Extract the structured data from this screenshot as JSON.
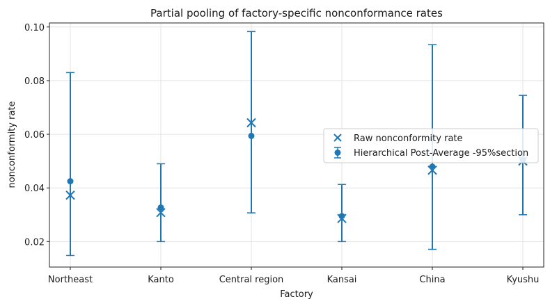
{
  "chart_data": {
    "type": "scatter",
    "title": "Partial pooling of factory-specific nonconformance rates",
    "xlabel": "Factory",
    "ylabel": "nonconformity rate",
    "categories": [
      "Northeast",
      "Kanto",
      "Central region",
      "Kansai",
      "China",
      "Kyushu"
    ],
    "ylim": [
      0.0105,
      0.1015
    ],
    "yticks": [
      0.02,
      0.04,
      0.06,
      0.08,
      0.1
    ],
    "ytick_labels": [
      "0.02",
      "0.04",
      "0.06",
      "0.08",
      "0.10"
    ],
    "grid": true,
    "legend_position": "right",
    "series": [
      {
        "name": "Raw nonconformity rate",
        "marker": "x",
        "values": [
          0.0373,
          0.0308,
          0.0643,
          0.0286,
          0.0466,
          0.05
        ]
      },
      {
        "name": "Hierarchical Post-Average -95%section",
        "marker": "o",
        "values": [
          0.0425,
          0.0327,
          0.0594,
          0.0295,
          0.0479,
          0.0505
        ],
        "lower": [
          0.0148,
          0.02,
          0.0307,
          0.02,
          0.0171,
          0.03
        ],
        "upper": [
          0.083,
          0.049,
          0.0983,
          0.0413,
          0.0934,
          0.0745
        ]
      }
    ],
    "color": "#1f77b4"
  }
}
